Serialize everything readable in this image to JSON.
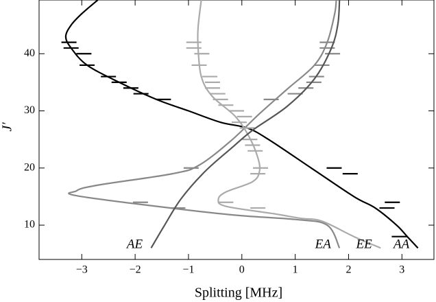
{
  "chart_data": {
    "type": "line",
    "xlabel": "Splitting [MHz]",
    "ylabel": "J′",
    "xlim": [
      -3.8,
      3.6
    ],
    "ylim": [
      4,
      49.4
    ],
    "xticks": [
      {
        "value": -3,
        "label": "−3"
      },
      {
        "value": -2,
        "label": "−2"
      },
      {
        "value": -1,
        "label": "−1"
      },
      0,
      1,
      2,
      3
    ],
    "yticks": [
      10,
      20,
      30,
      40
    ],
    "series": [
      {
        "name": "AA",
        "color": "#000000",
        "x": [
          3.3,
          3.1,
          2.9,
          2.5,
          2.1,
          1.3,
          0.5,
          0.1,
          -0.4,
          -1.0,
          -1.6,
          -2.3,
          -2.9,
          -3.2,
          -3.3,
          -3.2,
          -3.0,
          -2.7
        ],
        "y": [
          6,
          8,
          10,
          13,
          15,
          20,
          25,
          27,
          28,
          30,
          32,
          35,
          38,
          41,
          43,
          45,
          47,
          49.4
        ],
        "points_x": [
          2.95,
          2.82,
          2.72,
          2.03,
          1.73,
          -1.47,
          -1.89,
          -2.08,
          -2.3,
          -2.5,
          -2.9,
          -2.96,
          -3.2,
          -3.24
        ],
        "points_y": [
          8,
          14,
          13,
          19,
          20,
          32,
          33,
          34,
          35,
          36,
          38,
          40,
          41,
          42
        ]
      },
      {
        "name": "EA",
        "color": "#888888",
        "x": [
          1.83,
          1.6,
          1.0,
          -0.4,
          -3.0,
          -3.1,
          -2.7,
          -1.3,
          -0.8,
          -0.2,
          0.33,
          0.85,
          1.36,
          1.6,
          1.74,
          1.77
        ],
        "y": [
          6,
          10,
          11,
          12,
          15,
          16,
          17,
          19,
          20.5,
          24.8,
          29.5,
          33.8,
          38,
          42,
          47,
          49.4
        ],
        "points_x": [
          -1.9,
          -1.2,
          -0.95,
          0.55,
          1.0,
          1.2,
          1.35,
          1.4,
          1.5,
          1.7,
          1.6,
          1.6
        ],
        "points_y": [
          14,
          13,
          20,
          32,
          33,
          34,
          35,
          36,
          38,
          40,
          41,
          42
        ]
      },
      {
        "name": "EE",
        "color": "#aaaaaa",
        "x": [
          2.6,
          2.1,
          1.5,
          1.1,
          0.6,
          -0.3,
          -0.44,
          -0.3,
          0.2,
          0.33,
          0.3,
          0.14,
          -0.12,
          -0.56,
          -0.76,
          -0.82,
          -0.82,
          -0.76
        ],
        "y": [
          6,
          8,
          10.7,
          11.2,
          12,
          13.3,
          14.5,
          15.8,
          17.6,
          19.4,
          21.8,
          25.4,
          29,
          32.6,
          36,
          41,
          44.6,
          49.4
        ],
        "points_x": [
          0.3,
          -0.3,
          0.3,
          0.35,
          0.25,
          0.2,
          0.15,
          0.1,
          -0.05,
          0.05,
          -0.1,
          -0.3,
          -0.4,
          -0.45,
          -0.55,
          -0.55,
          -0.6,
          -0.8,
          -0.75,
          -0.9,
          -0.9
        ],
        "points_y": [
          13,
          14,
          19,
          20,
          23,
          24,
          25,
          27,
          28,
          29,
          30,
          31,
          32,
          33,
          34,
          35,
          36,
          38,
          40,
          41,
          42
        ]
      },
      {
        "name": "AE",
        "color": "#555555",
        "x": [
          -1.7,
          -1.46,
          -1.14,
          -0.69,
          -0.18,
          0.2,
          0.85,
          1.36,
          1.68,
          1.8,
          1.83
        ],
        "y": [
          6,
          9.8,
          14.6,
          19.4,
          23.6,
          26.6,
          30.8,
          35.6,
          41,
          45.2,
          49.4
        ]
      }
    ]
  }
}
